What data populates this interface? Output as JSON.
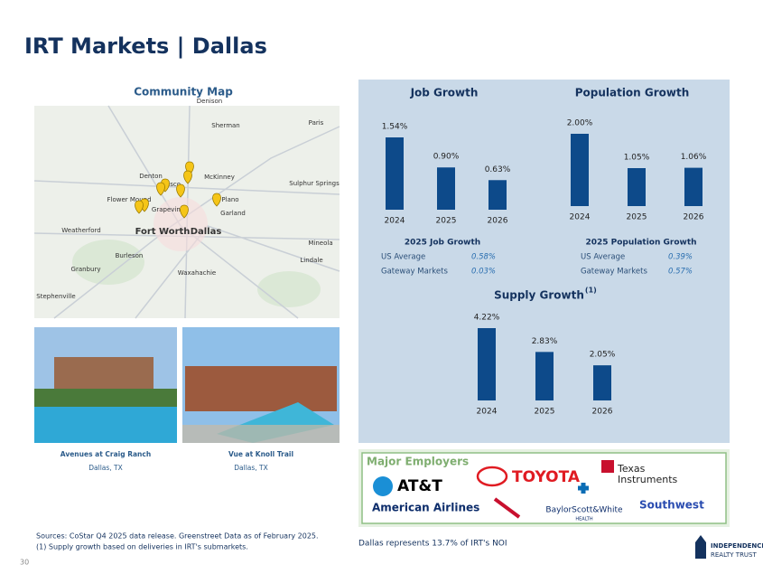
{
  "header": {
    "title": "IRT Markets | Dallas"
  },
  "map": {
    "title": "Community Map",
    "labels": [
      "Denison",
      "Sherman",
      "Paris",
      "McKinney",
      "Denton",
      "Frisco",
      "Flower Mound",
      "Grapevine",
      "Plano",
      "Garland",
      "Sulphur Springs",
      "Weatherford",
      "Fort Worth",
      "Dallas",
      "Mineola",
      "Lindale",
      "Burleson",
      "Waxahachie",
      "Granbury",
      "Stephenville"
    ]
  },
  "properties": [
    {
      "name": "Avenues at Craig Ranch",
      "location": "Dallas, TX"
    },
    {
      "name": "Vue at Knoll Trail",
      "location": "Dallas, TX"
    }
  ],
  "chart_data": [
    {
      "type": "bar",
      "title": "Job Growth",
      "categories": [
        "2024",
        "2025",
        "2026"
      ],
      "values": [
        1.54,
        0.9,
        0.63
      ],
      "value_labels": [
        "1.54%",
        "0.90%",
        "0.63%"
      ],
      "color": "#0d4a8a"
    },
    {
      "type": "bar",
      "title": "Population Growth",
      "categories": [
        "2024",
        "2025",
        "2026"
      ],
      "values": [
        2.0,
        1.05,
        1.06
      ],
      "value_labels": [
        "2.00%",
        "1.05%",
        "1.06%"
      ],
      "color": "#0d4a8a"
    },
    {
      "type": "bar",
      "title": "Supply Growth",
      "title_note": "(1)",
      "categories": [
        "2024",
        "2025",
        "2026"
      ],
      "values": [
        4.22,
        2.83,
        2.05
      ],
      "value_labels": [
        "4.22%",
        "2.83%",
        "2.05%"
      ],
      "color": "#0d4a8a"
    }
  ],
  "stats": [
    {
      "title": "2025 Job Growth",
      "rows": [
        [
          "US Average",
          "0.58%"
        ],
        [
          "Gateway Markets",
          "0.03%"
        ]
      ]
    },
    {
      "title": "2025 Population Growth",
      "rows": [
        [
          "US Average",
          "0.39%"
        ],
        [
          "Gateway Markets",
          "0.57%"
        ]
      ]
    }
  ],
  "employers": {
    "title": "Major Employers",
    "logos": [
      "AT&T",
      "TOYOTA",
      "Texas",
      "Instruments",
      "American Airlines",
      "BaylorScott&White",
      "HEALTH",
      "Southwest"
    ]
  },
  "noi_note": "Dallas represents 13.7% of IRT's NOI",
  "footnotes": [
    "Sources: CoStar Q4 2025 data release. Greenstreet Data as of February 2025.",
    "(1)  Supply growth based on deliveries in IRT's submarkets."
  ],
  "page_number": "30",
  "brand": [
    "INDEPENDENCE",
    "REALTY TRUST"
  ]
}
